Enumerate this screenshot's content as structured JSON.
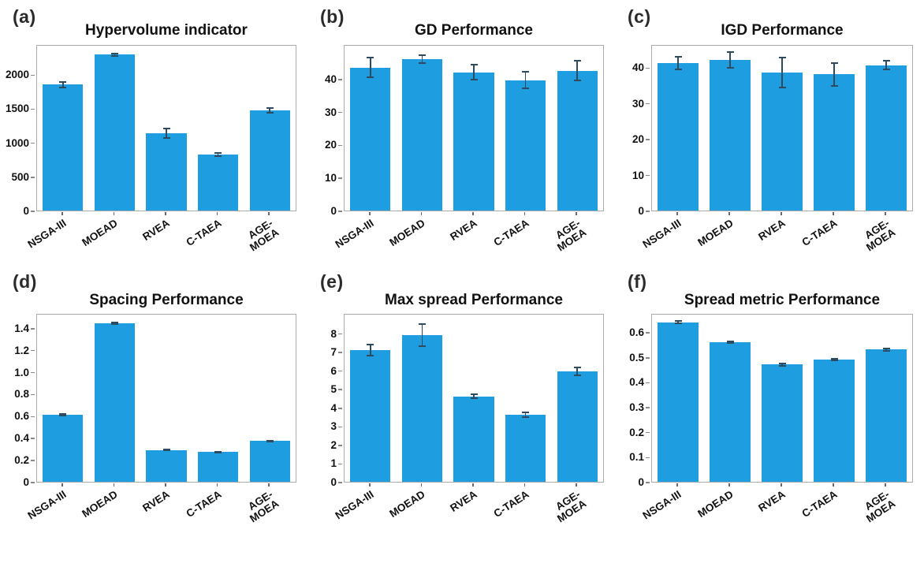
{
  "figure": {
    "background": "#ffffff",
    "layout": "2x3-grid-of-bar-charts"
  },
  "colors": {
    "bar": "#1e9de0",
    "error_bar": "#2e4a5e",
    "spine": "#ababab",
    "text": "#111111"
  },
  "chart_data": [
    {
      "type": "bar",
      "panel_label": "(a)",
      "title": "Hypervolume indicator",
      "categories": [
        "NSGA-III",
        "MOEAD",
        "RVEA",
        "C-TAEA",
        "AGE-\nMOEA"
      ],
      "values": [
        1850,
        2290,
        1130,
        820,
        1470
      ],
      "errors": [
        40,
        15,
        70,
        20,
        30
      ],
      "yticks": [
        "0",
        "500",
        "1000",
        "1500",
        "2000"
      ],
      "ylim": [
        0,
        2420
      ],
      "xlabel": "",
      "ylabel": "",
      "grid": false,
      "legend": "none"
    },
    {
      "type": "bar",
      "panel_label": "(b)",
      "title": "GD Performance",
      "categories": [
        "NSGA-III",
        "MOEAD",
        "RVEA",
        "C-TAEA",
        "AGE-\nMOEA"
      ],
      "values": [
        43.4,
        45.9,
        41.9,
        39.5,
        42.4
      ],
      "errors": [
        3.0,
        1.2,
        2.3,
        2.5,
        3.0
      ],
      "yticks": [
        "0",
        "10",
        "20",
        "30",
        "40"
      ],
      "ylim": [
        0,
        50
      ],
      "xlabel": "",
      "ylabel": "",
      "grid": false,
      "legend": "none"
    },
    {
      "type": "bar",
      "panel_label": "(c)",
      "title": "IGD Performance",
      "categories": [
        "NSGA-III",
        "MOEAD",
        "RVEA",
        "C-TAEA",
        "AGE-\nMOEA"
      ],
      "values": [
        41.2,
        42.0,
        38.6,
        38.0,
        40.6
      ],
      "errors": [
        1.8,
        2.2,
        4.2,
        3.2,
        1.3
      ],
      "yticks": [
        "0",
        "10",
        "20",
        "30",
        "40"
      ],
      "ylim": [
        0,
        46
      ],
      "xlabel": "",
      "ylabel": "",
      "grid": false,
      "legend": "none"
    },
    {
      "type": "bar",
      "panel_label": "(d)",
      "title": "Spacing Performance",
      "categories": [
        "NSGA-III",
        "MOEAD",
        "RVEA",
        "C-TAEA",
        "AGE-\nMOEA"
      ],
      "values": [
        0.61,
        1.44,
        0.29,
        0.27,
        0.37
      ],
      "errors": [
        0.005,
        0.005,
        0.005,
        0.005,
        0.005
      ],
      "yticks": [
        "0",
        "0.2",
        "0.4",
        "0.6",
        "0.8",
        "1.0",
        "1.2",
        "1.4"
      ],
      "ylim": [
        0,
        1.52
      ],
      "xlabel": "",
      "ylabel": "",
      "grid": false,
      "legend": "none"
    },
    {
      "type": "bar",
      "panel_label": "(e)",
      "title": "Max spread Performance",
      "categories": [
        "NSGA-III",
        "MOEAD",
        "RVEA",
        "C-TAEA",
        "AGE-\nMOEA"
      ],
      "values": [
        7.1,
        7.9,
        4.6,
        3.6,
        5.95
      ],
      "errors": [
        0.3,
        0.6,
        0.12,
        0.12,
        0.2
      ],
      "yticks": [
        "0",
        "1",
        "2",
        "3",
        "4",
        "5",
        "6",
        "7",
        "8"
      ],
      "ylim": [
        0,
        9
      ],
      "xlabel": "",
      "ylabel": "",
      "grid": false,
      "legend": "none"
    },
    {
      "type": "bar",
      "panel_label": "(f)",
      "title": "Spread metric Performance",
      "categories": [
        "NSGA-III",
        "MOEAD",
        "RVEA",
        "C-TAEA",
        "AGE-\nMOEA"
      ],
      "values": [
        0.64,
        0.56,
        0.47,
        0.49,
        0.53
      ],
      "errors": [
        0.004,
        0.004,
        0.004,
        0.004,
        0.004
      ],
      "yticks": [
        "0",
        "0.1",
        "0.2",
        "0.3",
        "0.4",
        "0.5",
        "0.6"
      ],
      "ylim": [
        0,
        0.67
      ],
      "xlabel": "",
      "ylabel": "",
      "grid": false,
      "legend": "none"
    }
  ]
}
